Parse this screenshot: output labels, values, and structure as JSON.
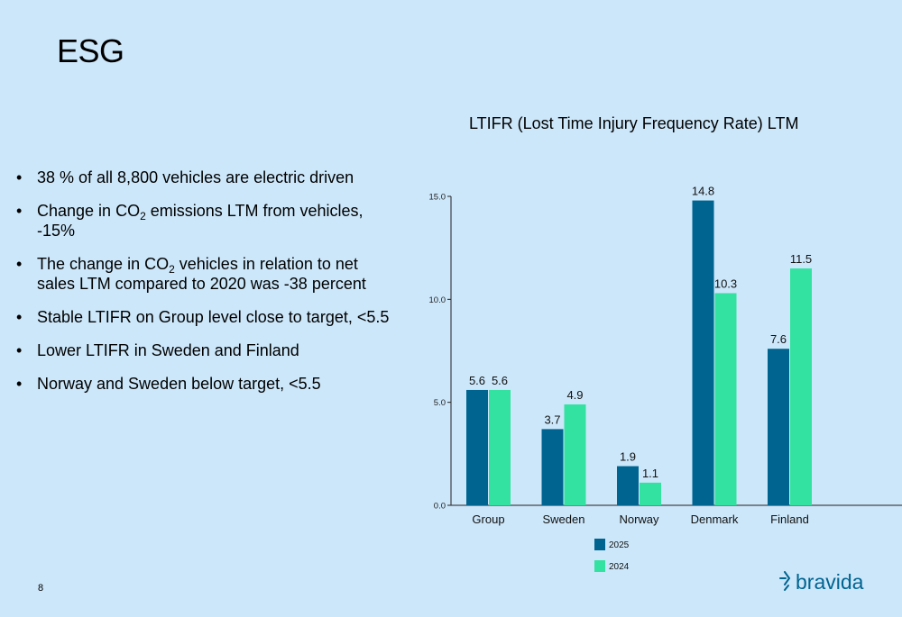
{
  "slide": {
    "title": "ESG",
    "page_number": "8",
    "logo_text": "bravida",
    "bullets": [
      {
        "pre": "38 % of all 8,800 vehicles are electric driven"
      },
      {
        "pre": "Change in CO",
        "sub": "2",
        "post": " emissions LTM from vehicles, -15%"
      },
      {
        "pre": "The change in CO",
        "sub": "2",
        "post": " vehicles in relation to net sales LTM compared to 2020 was -38 percent"
      },
      {
        "pre": "Stable LTIFR on Group level close to target, <5.5"
      },
      {
        "pre": "Lower LTIFR in Sweden and Finland"
      },
      {
        "pre": "Norway and Sweden below target, <5.5"
      }
    ]
  },
  "colors": {
    "background": "#cce7fa",
    "series_2025": "#006491",
    "series_2024": "#33e2a0"
  },
  "chart_data": {
    "type": "bar",
    "title": "LTIFR (Lost Time Injury Frequency Rate) LTM",
    "xlabel": "",
    "ylabel": "",
    "categories": [
      "Group",
      "Sweden",
      "Norway",
      "Denmark",
      "Finland"
    ],
    "series": [
      {
        "name": "2025",
        "values": [
          5.6,
          3.7,
          1.9,
          14.8,
          7.6
        ],
        "labels": [
          "5.6",
          "3.7",
          "1.9",
          "14.8",
          "7.6"
        ]
      },
      {
        "name": "2024",
        "values": [
          5.6,
          4.9,
          1.1,
          10.3,
          11.5
        ],
        "labels": [
          "5.6",
          "4.9",
          "1.1",
          "10.3",
          "11.5"
        ]
      }
    ],
    "yticks": [
      "0.0",
      "5.0",
      "10.0",
      "15.0"
    ],
    "ylim": [
      0,
      15
    ],
    "grid": false,
    "legend": "bottom"
  }
}
